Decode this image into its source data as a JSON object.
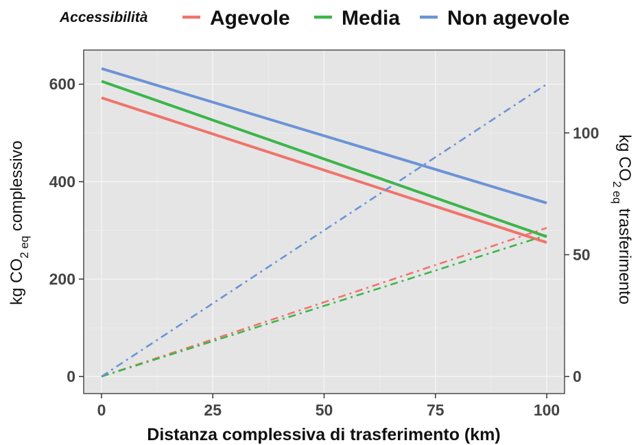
{
  "chart_data": {
    "type": "line",
    "legend": {
      "title": "Accessibilità",
      "position": "top",
      "entries": [
        "Agevole",
        "Media",
        "Non agevole"
      ]
    },
    "xlabel": "Distanza complessiva di trasferimento (km)",
    "ylabel_left": {
      "pre": "kg CO",
      "sub": "2 eq",
      "post": " complessivo"
    },
    "ylabel_right": {
      "pre": "kg CO",
      "sub": "2 eq",
      "post": " trasferimento"
    },
    "xlim": [
      -4,
      104
    ],
    "ylim_left": [
      -35,
      670
    ],
    "ylim_right": [
      -7,
      134
    ],
    "x_ticks": [
      0,
      25,
      50,
      75,
      100
    ],
    "y_left_ticks": [
      0,
      200,
      400,
      600
    ],
    "y_right_ticks": [
      0,
      50,
      100
    ],
    "grid": true,
    "background": "#e5e5e5",
    "series": [
      {
        "name": "Agevole",
        "axis": "left",
        "style": "solid",
        "color": "#f0736b",
        "x": [
          0,
          100
        ],
        "y": [
          572,
          275
        ]
      },
      {
        "name": "Media",
        "axis": "left",
        "style": "solid",
        "color": "#3cb54a",
        "x": [
          0,
          100
        ],
        "y": [
          606,
          287
        ]
      },
      {
        "name": "Non agevole",
        "axis": "left",
        "style": "solid",
        "color": "#6b93d6",
        "x": [
          0,
          100
        ],
        "y": [
          632,
          356
        ]
      },
      {
        "name": "Agevole",
        "axis": "right",
        "style": "dashdot",
        "color": "#f0736b",
        "x": [
          0,
          100
        ],
        "y": [
          0,
          61
        ]
      },
      {
        "name": "Media",
        "axis": "right",
        "style": "dashdot",
        "color": "#3cb54a",
        "x": [
          0,
          100
        ],
        "y": [
          0,
          58
        ]
      },
      {
        "name": "Non agevole",
        "axis": "right",
        "style": "dashdot",
        "color": "#6b93d6",
        "x": [
          0,
          100
        ],
        "y": [
          0,
          120
        ]
      }
    ]
  }
}
